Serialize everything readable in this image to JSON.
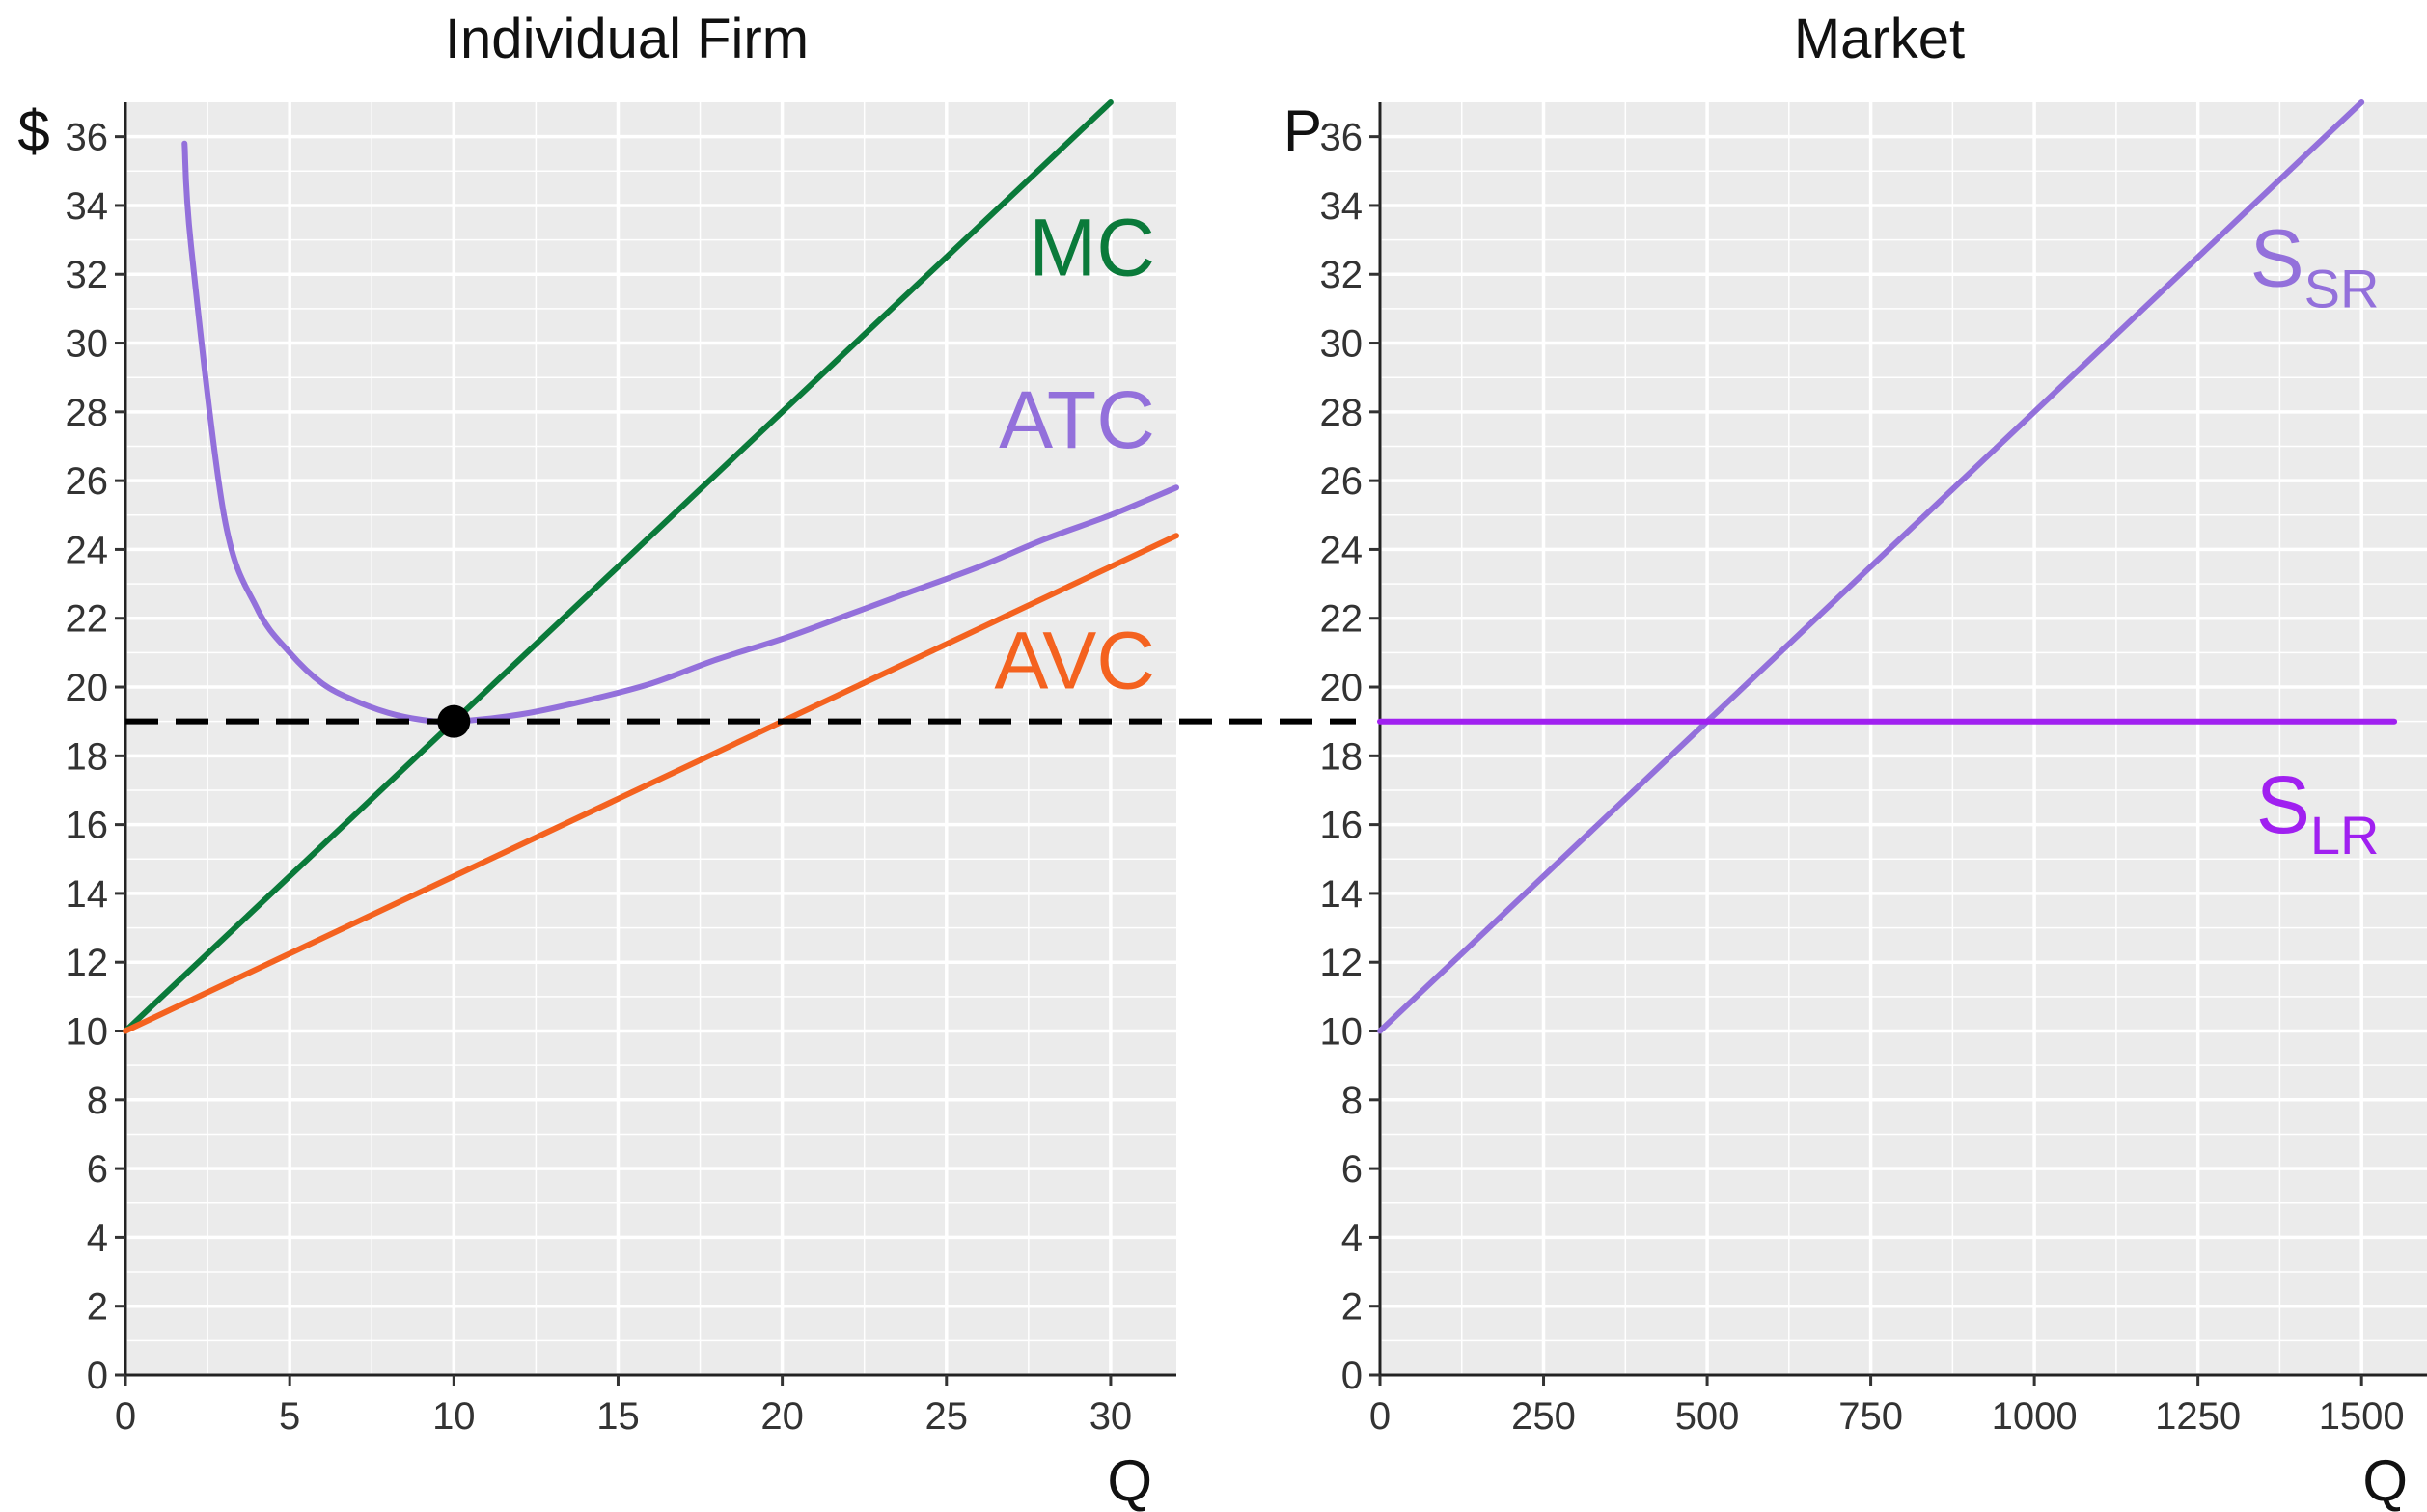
{
  "chart_data": [
    {
      "type": "line",
      "title": "Individual Firm",
      "xlabel": "Q",
      "ylabel": "$",
      "xlim": [
        0,
        32
      ],
      "ylim": [
        0,
        37
      ],
      "x_ticks": [
        0,
        5,
        10,
        15,
        20,
        25,
        30
      ],
      "y_ticks": [
        0,
        2,
        4,
        6,
        8,
        10,
        12,
        14,
        16,
        18,
        20,
        22,
        24,
        26,
        28,
        30,
        32,
        34,
        36
      ],
      "grid": true,
      "series": [
        {
          "name": "MC",
          "color": "#0a7a3a",
          "x": [
            0,
            5,
            10,
            15,
            20,
            25,
            30
          ],
          "y": [
            10,
            14.5,
            19,
            23.5,
            28,
            32.5,
            37
          ]
        },
        {
          "name": "ATC",
          "color": "#9370db",
          "x": [
            1.8,
            2,
            3,
            4,
            5,
            6,
            7,
            8,
            9,
            10,
            12,
            14,
            16,
            18,
            20,
            22,
            24,
            26,
            28,
            30,
            32
          ],
          "y": [
            35.8,
            32.8,
            25.0,
            22.3,
            21.0,
            20.1,
            19.6,
            19.25,
            19.05,
            19.0,
            19.2,
            19.6,
            20.1,
            20.8,
            21.4,
            22.1,
            22.8,
            23.5,
            24.3,
            25.0,
            25.8
          ]
        },
        {
          "name": "AVC",
          "color": "#f4621f",
          "x": [
            0,
            10,
            20,
            30,
            32
          ],
          "y": [
            10,
            14.5,
            19,
            23.5,
            24.4
          ]
        }
      ],
      "reference_lines": [
        {
          "orientation": "horizontal",
          "y": 19,
          "style": "dashed",
          "color": "#000000"
        }
      ],
      "points": [
        {
          "x": 10,
          "y": 19,
          "color": "#000000"
        }
      ],
      "labels": [
        {
          "text": "MC",
          "x": 29,
          "y": 32.8,
          "color": "#0a7a3a"
        },
        {
          "text": "ATC",
          "x": 29,
          "y": 27.8,
          "color": "#9370db"
        },
        {
          "text": "AVC",
          "x": 29,
          "y": 20.8,
          "color": "#f4621f"
        }
      ]
    },
    {
      "type": "line",
      "title": "Market",
      "xlabel": "Q",
      "ylabel": "P",
      "xlim": [
        0,
        1600
      ],
      "ylim": [
        0,
        37
      ],
      "x_ticks": [
        0,
        250,
        500,
        750,
        1000,
        1250,
        1500
      ],
      "y_ticks": [
        0,
        2,
        4,
        6,
        8,
        10,
        12,
        14,
        16,
        18,
        20,
        22,
        24,
        26,
        28,
        30,
        32,
        34,
        36
      ],
      "grid": true,
      "series": [
        {
          "name": "SSR",
          "color": "#9370db",
          "x": [
            0,
            1500
          ],
          "y": [
            10,
            37
          ]
        },
        {
          "name": "SLR",
          "color": "#a020f0",
          "x": [
            0,
            1550
          ],
          "y": [
            19,
            19
          ]
        }
      ],
      "labels": [
        {
          "text": "S",
          "sub": "SR",
          "x": 1350,
          "y": 32.5,
          "color": "#9370db"
        },
        {
          "text": "S",
          "sub": "LR",
          "x": 1350,
          "y": 16.6,
          "color": "#a020f0"
        }
      ]
    }
  ]
}
